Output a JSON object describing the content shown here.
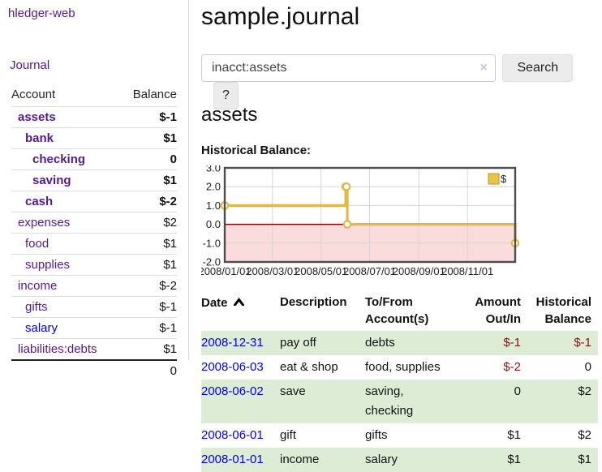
{
  "sidebar": {
    "brand": "hledger-web",
    "nav_journal": "Journal",
    "accounts": {
      "header_account": "Account",
      "header_balance": "Balance",
      "rows": [
        {
          "name": "assets",
          "depth": 1,
          "bold": true,
          "balance": "$-1",
          "balance_style": "neg-strong",
          "link_color": "purple"
        },
        {
          "name": "bank",
          "depth": 2,
          "bold": true,
          "balance": "$1",
          "balance_style": "pos",
          "link_color": "purple"
        },
        {
          "name": "checking",
          "depth": 3,
          "bold": true,
          "balance": "0",
          "balance_style": "pos",
          "link_color": "purple"
        },
        {
          "name": "saving",
          "depth": 3,
          "bold": true,
          "balance": "$1",
          "balance_style": "pos",
          "link_color": "purple"
        },
        {
          "name": "cash",
          "depth": 2,
          "bold": true,
          "balance": "$-2",
          "balance_style": "neg-strong",
          "link_color": "purple"
        },
        {
          "name": "expenses",
          "depth": 1,
          "bold": false,
          "balance": "$2",
          "balance_style": "pos",
          "link_color": "purple"
        },
        {
          "name": "food",
          "depth": 2,
          "bold": false,
          "balance": "$1",
          "balance_style": "pos",
          "link_color": "purple"
        },
        {
          "name": "supplies",
          "depth": 2,
          "bold": false,
          "balance": "$1",
          "balance_style": "pos",
          "link_color": "purple"
        },
        {
          "name": "income",
          "depth": 1,
          "bold": false,
          "balance": "$-2",
          "balance_style": "neg-soft",
          "link_color": "purple"
        },
        {
          "name": "gifts",
          "depth": 2,
          "bold": false,
          "balance": "$-1",
          "balance_style": "neg-soft",
          "link_color": "purple"
        },
        {
          "name": "salary",
          "depth": 2,
          "bold": false,
          "balance": "$-1",
          "balance_style": "neg-soft",
          "link_color": "blue"
        },
        {
          "name": "liabilities:debts",
          "depth": 1,
          "bold": false,
          "balance": "$1",
          "balance_style": "pos",
          "link_color": "purple"
        }
      ],
      "total": "0"
    }
  },
  "header": {
    "title": "sample.journal"
  },
  "search": {
    "value": "inacct:assets",
    "clear_icon": "×",
    "button_label": "Search",
    "help_label": "?"
  },
  "account_page": {
    "title": "assets",
    "chart_label": "Historical Balance:"
  },
  "chart_data": {
    "type": "line",
    "step": true,
    "title": "Historical Balance",
    "series": [
      {
        "name": "$",
        "points": [
          [
            "2008-01-01",
            1
          ],
          [
            "2008-06-01",
            2
          ],
          [
            "2008-06-02",
            2
          ],
          [
            "2008-06-03",
            0
          ],
          [
            "2008-12-31",
            -1
          ]
        ]
      }
    ],
    "x_range": [
      "2008-01-01",
      "2008-12-31"
    ],
    "ylim": [
      -2,
      3
    ],
    "yticks": [
      3,
      2,
      1,
      0,
      -1,
      -2
    ],
    "ytick_labels": [
      "3.0",
      "2.0",
      "1.0",
      "0.0",
      "-1.0",
      "-2.0"
    ],
    "xticks": [
      "2008-01-01",
      "2008-03-01",
      "2008-05-01",
      "2008-07-01",
      "2008-09-01",
      "2008-11-01"
    ],
    "xtick_labels": [
      "2008/01/01",
      "2008/03/01",
      "2008/05/01",
      "2008/07/01",
      "2008/09/01",
      "2008/11/01"
    ],
    "legend": {
      "label": "$",
      "position": "top-right"
    },
    "grid": true,
    "colors": {
      "line": "#e3b849",
      "marker_fill": "#ffffff",
      "legend_fill": "#eac446",
      "legend_border": "#b59427",
      "negative_region": "#fbdcdc",
      "zero_line": "#8b0000",
      "grid_line": "#d4d4d4",
      "border": "#4d4d4d",
      "tick_text": "#222222"
    }
  },
  "register_table": {
    "headers": {
      "date": "Date",
      "description": "Description",
      "accounts": "To/From Account(s)",
      "amount": "Amount Out/In",
      "balance": "Historical Balance"
    },
    "rows": [
      {
        "date": "2008-12-31",
        "description": "pay off",
        "accounts": "debts",
        "amount": "$-1",
        "balance": "$-1"
      },
      {
        "date": "2008-06-03",
        "description": "eat & shop",
        "accounts": "food, supplies",
        "amount": "$-2",
        "balance": "0"
      },
      {
        "date": "2008-06-02",
        "description": "save",
        "accounts": "saving, checking",
        "amount": "0",
        "balance": "$2"
      },
      {
        "date": "2008-06-01",
        "description": "gift",
        "accounts": "gifts",
        "amount": "$1",
        "balance": "$2"
      },
      {
        "date": "2008-01-01",
        "description": "income",
        "accounts": "salary",
        "amount": "$1",
        "balance": "$1"
      }
    ]
  },
  "colors": {
    "link_purple": "#551a8b",
    "link_blue": "#0000e0",
    "negative_strong": "#8b1212",
    "negative_soft": "#bd6f6f",
    "row_green": "#dcecd5"
  }
}
